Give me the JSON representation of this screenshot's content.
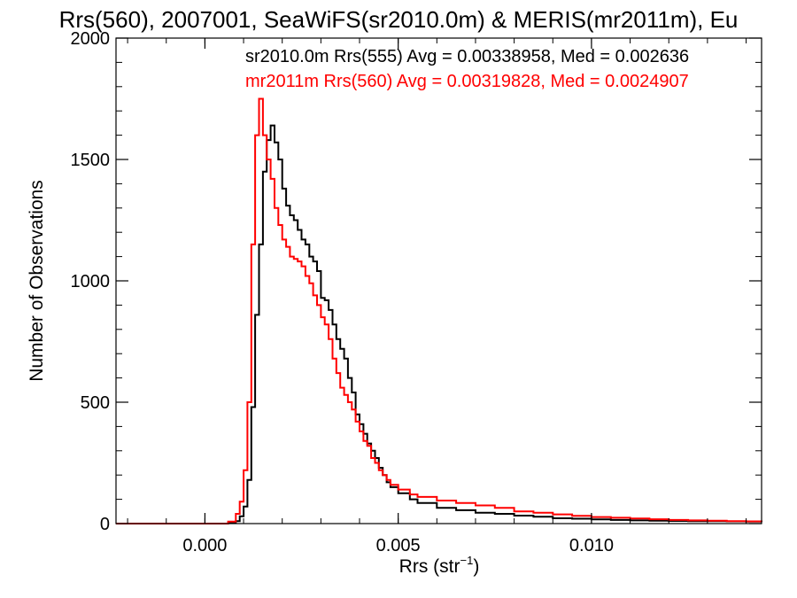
{
  "chart_data": {
    "type": "histogram",
    "title": "Rrs(560), 2007001, SeaWiFS(sr2010.0m) & MERIS(mr2011m), Eu",
    "xlabel_main": "Rrs (str",
    "xlabel_sup": "−1",
    "xlabel_tail": ")",
    "ylabel": "Number of Observations",
    "xlim": [
      -0.0023,
      0.0144
    ],
    "ylim": [
      0,
      2000
    ],
    "x_ticks": [
      {
        "value": 0.0,
        "label": "0.000"
      },
      {
        "value": 0.005,
        "label": "0.005"
      },
      {
        "value": 0.01,
        "label": "0.010"
      }
    ],
    "y_ticks": [
      {
        "value": 0,
        "label": "0"
      },
      {
        "value": 500,
        "label": "500"
      },
      {
        "value": 1000,
        "label": "1000"
      },
      {
        "value": 1500,
        "label": "1500"
      },
      {
        "value": 2000,
        "label": "2000"
      }
    ],
    "annotations": [
      {
        "text": "sr2010.0m Rrs(555) Avg = 0.00338958, Med = 0.002636",
        "color": "#000000"
      },
      {
        "text": "mr2011m Rrs(560) Avg = 0.00319828, Med = 0.0024907",
        "color": "#ff0000"
      }
    ],
    "series": [
      {
        "name": "sr2010.0m Rrs(555)",
        "color": "#000000",
        "points": [
          [
            -0.0023,
            0
          ],
          [
            0.0002,
            0
          ],
          [
            0.0006,
            2
          ],
          [
            0.0008,
            10
          ],
          [
            0.0009,
            30
          ],
          [
            0.001,
            70
          ],
          [
            0.0011,
            180
          ],
          [
            0.0012,
            480
          ],
          [
            0.0013,
            860
          ],
          [
            0.0014,
            1150
          ],
          [
            0.0015,
            1450
          ],
          [
            0.0016,
            1580
          ],
          [
            0.0017,
            1640
          ],
          [
            0.0018,
            1570
          ],
          [
            0.0019,
            1500
          ],
          [
            0.002,
            1380
          ],
          [
            0.0021,
            1310
          ],
          [
            0.0022,
            1270
          ],
          [
            0.0023,
            1250
          ],
          [
            0.0024,
            1210
          ],
          [
            0.0025,
            1170
          ],
          [
            0.0026,
            1150
          ],
          [
            0.0027,
            1100
          ],
          [
            0.0028,
            1080
          ],
          [
            0.0029,
            1040
          ],
          [
            0.003,
            930
          ],
          [
            0.0031,
            920
          ],
          [
            0.0032,
            880
          ],
          [
            0.0033,
            820
          ],
          [
            0.0034,
            760
          ],
          [
            0.0035,
            720
          ],
          [
            0.0036,
            680
          ],
          [
            0.0037,
            600
          ],
          [
            0.0038,
            540
          ],
          [
            0.0039,
            450
          ],
          [
            0.004,
            410
          ],
          [
            0.0041,
            370
          ],
          [
            0.0042,
            330
          ],
          [
            0.0043,
            300
          ],
          [
            0.0044,
            270
          ],
          [
            0.0045,
            230
          ],
          [
            0.0046,
            200
          ],
          [
            0.0047,
            170
          ],
          [
            0.0048,
            150
          ],
          [
            0.005,
            125
          ],
          [
            0.0053,
            100
          ],
          [
            0.0055,
            85
          ],
          [
            0.006,
            65
          ],
          [
            0.0065,
            55
          ],
          [
            0.007,
            45
          ],
          [
            0.0075,
            40
          ],
          [
            0.008,
            33
          ],
          [
            0.0085,
            28
          ],
          [
            0.009,
            22
          ],
          [
            0.0095,
            20
          ],
          [
            0.01,
            17
          ],
          [
            0.0105,
            15
          ],
          [
            0.011,
            13
          ],
          [
            0.0115,
            12
          ],
          [
            0.012,
            11
          ],
          [
            0.0125,
            10
          ],
          [
            0.013,
            10
          ],
          [
            0.0135,
            9
          ],
          [
            0.014,
            8
          ],
          [
            0.0144,
            7
          ]
        ]
      },
      {
        "name": "mr2011m Rrs(560)",
        "color": "#ff0000",
        "points": [
          [
            -0.0023,
            0
          ],
          [
            0.0002,
            0
          ],
          [
            0.0006,
            8
          ],
          [
            0.0008,
            40
          ],
          [
            0.0009,
            90
          ],
          [
            0.001,
            220
          ],
          [
            0.0011,
            500
          ],
          [
            0.0012,
            1150
          ],
          [
            0.0013,
            1600
          ],
          [
            0.0014,
            1750
          ],
          [
            0.0015,
            1600
          ],
          [
            0.0016,
            1500
          ],
          [
            0.0017,
            1420
          ],
          [
            0.0018,
            1300
          ],
          [
            0.0019,
            1230
          ],
          [
            0.002,
            1170
          ],
          [
            0.0021,
            1140
          ],
          [
            0.0022,
            1100
          ],
          [
            0.0023,
            1090
          ],
          [
            0.0024,
            1080
          ],
          [
            0.0025,
            1060
          ],
          [
            0.0026,
            1020
          ],
          [
            0.0027,
            990
          ],
          [
            0.0028,
            940
          ],
          [
            0.0029,
            900
          ],
          [
            0.003,
            850
          ],
          [
            0.0031,
            820
          ],
          [
            0.0032,
            760
          ],
          [
            0.0033,
            680
          ],
          [
            0.0034,
            620
          ],
          [
            0.0035,
            560
          ],
          [
            0.0036,
            530
          ],
          [
            0.0037,
            500
          ],
          [
            0.0038,
            470
          ],
          [
            0.0039,
            420
          ],
          [
            0.004,
            380
          ],
          [
            0.0041,
            340
          ],
          [
            0.0042,
            320
          ],
          [
            0.0043,
            270
          ],
          [
            0.0044,
            250
          ],
          [
            0.0045,
            220
          ],
          [
            0.0046,
            200
          ],
          [
            0.0047,
            180
          ],
          [
            0.0048,
            160
          ],
          [
            0.005,
            140
          ],
          [
            0.0053,
            120
          ],
          [
            0.0055,
            110
          ],
          [
            0.006,
            95
          ],
          [
            0.0065,
            85
          ],
          [
            0.007,
            75
          ],
          [
            0.0075,
            65
          ],
          [
            0.008,
            50
          ],
          [
            0.0085,
            45
          ],
          [
            0.009,
            38
          ],
          [
            0.0095,
            32
          ],
          [
            0.01,
            27
          ],
          [
            0.0105,
            24
          ],
          [
            0.011,
            21
          ],
          [
            0.0115,
            18
          ],
          [
            0.012,
            15
          ],
          [
            0.0125,
            13
          ],
          [
            0.013,
            12
          ],
          [
            0.0135,
            10
          ],
          [
            0.014,
            9
          ],
          [
            0.0144,
            8
          ]
        ]
      }
    ]
  }
}
